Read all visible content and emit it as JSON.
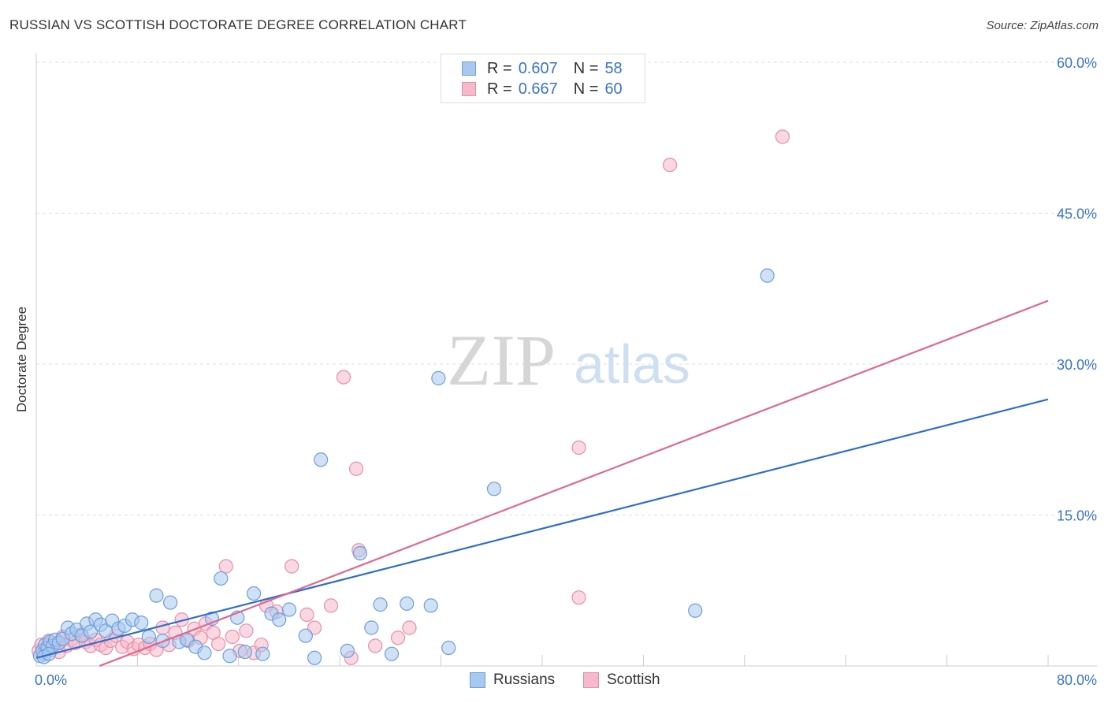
{
  "title": "RUSSIAN VS SCOTTISH DOCTORATE DEGREE CORRELATION CHART",
  "source": "Source: ZipAtlas.com",
  "watermark": {
    "zip": "ZIP",
    "atlas": "atlas"
  },
  "legend": {
    "russians": {
      "r_label": "R =",
      "r_value": "0.607",
      "n_label": "N =",
      "n_value": "58"
    },
    "scottish": {
      "r_label": "R =",
      "r_value": "0.667",
      "n_label": "N =",
      "n_value": "60"
    }
  },
  "colors": {
    "russians_fill": "#a9c8ef",
    "russians_stroke": "#6a9fdc",
    "russians_line": "#2f6fc9",
    "scottish_fill": "#f6b8cb",
    "scottish_stroke": "#e88ea9",
    "scottish_line": "#e0688f",
    "tick_label": "#3a74c8",
    "grid": "#dcdcdc"
  },
  "chart_data": {
    "type": "scatter",
    "title": "RUSSIAN VS SCOTTISH DOCTORATE DEGREE CORRELATION CHART",
    "xlabel": "",
    "ylabel": "Doctorate Degree",
    "xlim": [
      0,
      80
    ],
    "ylim": [
      0,
      60
    ],
    "x_tick_labels": [
      "0.0%",
      "80.0%"
    ],
    "y_ticks": [
      15,
      30,
      45,
      60
    ],
    "y_tick_labels": [
      "15.0%",
      "30.0%",
      "45.0%",
      "60.0%"
    ],
    "grid": true,
    "legend_position": "top-center",
    "series": [
      {
        "name": "Russians",
        "r": 0.607,
        "n": 58,
        "trend": [
          [
            0,
            0.8
          ],
          [
            80,
            26.5
          ]
        ],
        "points": [
          [
            0.3,
            1.0
          ],
          [
            0.5,
            1.5
          ],
          [
            0.7,
            2.1
          ],
          [
            0.9,
            1.8
          ],
          [
            1.1,
            2.4
          ],
          [
            1.3,
            2.0
          ],
          [
            1.5,
            2.6
          ],
          [
            1.8,
            2.3
          ],
          [
            2.1,
            2.7
          ],
          [
            2.5,
            3.8
          ],
          [
            2.8,
            3.2
          ],
          [
            3.2,
            3.6
          ],
          [
            3.6,
            3.0
          ],
          [
            4.0,
            4.2
          ],
          [
            4.3,
            3.4
          ],
          [
            4.7,
            4.6
          ],
          [
            5.1,
            4.1
          ],
          [
            5.5,
            3.5
          ],
          [
            6.0,
            4.5
          ],
          [
            6.5,
            3.7
          ],
          [
            7.0,
            4.0
          ],
          [
            7.6,
            4.6
          ],
          [
            8.3,
            4.3
          ],
          [
            8.9,
            2.9
          ],
          [
            9.5,
            7.0
          ],
          [
            10.0,
            2.5
          ],
          [
            10.6,
            6.3
          ],
          [
            11.3,
            2.4
          ],
          [
            11.9,
            2.6
          ],
          [
            12.6,
            1.9
          ],
          [
            13.3,
            1.3
          ],
          [
            13.9,
            4.7
          ],
          [
            14.6,
            8.7
          ],
          [
            15.3,
            1.0
          ],
          [
            15.9,
            4.8
          ],
          [
            16.5,
            1.4
          ],
          [
            17.2,
            7.2
          ],
          [
            17.9,
            1.2
          ],
          [
            18.6,
            5.2
          ],
          [
            19.2,
            4.6
          ],
          [
            20.0,
            5.6
          ],
          [
            21.3,
            3.0
          ],
          [
            22.0,
            0.8
          ],
          [
            22.5,
            20.5
          ],
          [
            24.6,
            1.5
          ],
          [
            25.6,
            11.2
          ],
          [
            26.5,
            3.8
          ],
          [
            27.2,
            6.1
          ],
          [
            28.1,
            1.2
          ],
          [
            29.3,
            6.2
          ],
          [
            31.2,
            6.0
          ],
          [
            31.8,
            28.6
          ],
          [
            32.6,
            1.8
          ],
          [
            36.2,
            17.6
          ],
          [
            52.1,
            5.5
          ],
          [
            57.8,
            38.8
          ],
          [
            0.6,
            0.9
          ],
          [
            1.0,
            1.2
          ]
        ]
      },
      {
        "name": "Scottish",
        "r": 0.667,
        "n": 60,
        "trend": [
          [
            5,
            0
          ],
          [
            80,
            36.3
          ]
        ],
        "points": [
          [
            0.2,
            1.5
          ],
          [
            0.4,
            2.1
          ],
          [
            0.6,
            1.2
          ],
          [
            0.8,
            1.8
          ],
          [
            1.0,
            2.5
          ],
          [
            1.2,
            1.6
          ],
          [
            1.5,
            2.2
          ],
          [
            1.8,
            1.4
          ],
          [
            2.1,
            2.9
          ],
          [
            2.4,
            2.0
          ],
          [
            2.8,
            2.6
          ],
          [
            3.1,
            2.3
          ],
          [
            3.5,
            3.1
          ],
          [
            3.9,
            2.4
          ],
          [
            4.3,
            2.0
          ],
          [
            4.7,
            2.6
          ],
          [
            5.1,
            2.1
          ],
          [
            5.5,
            1.8
          ],
          [
            5.9,
            2.5
          ],
          [
            6.3,
            3.0
          ],
          [
            6.8,
            1.9
          ],
          [
            7.2,
            2.4
          ],
          [
            7.7,
            1.7
          ],
          [
            8.1,
            2.1
          ],
          [
            8.6,
            1.8
          ],
          [
            9.0,
            2.2
          ],
          [
            9.5,
            1.6
          ],
          [
            10.0,
            3.8
          ],
          [
            10.5,
            2.1
          ],
          [
            11.0,
            3.3
          ],
          [
            11.5,
            4.6
          ],
          [
            12.0,
            2.5
          ],
          [
            12.5,
            3.7
          ],
          [
            13.0,
            2.8
          ],
          [
            13.4,
            4.2
          ],
          [
            14.0,
            3.3
          ],
          [
            14.4,
            2.2
          ],
          [
            15.0,
            9.9
          ],
          [
            15.5,
            2.9
          ],
          [
            16.1,
            1.5
          ],
          [
            16.6,
            3.5
          ],
          [
            17.2,
            1.3
          ],
          [
            17.8,
            2.1
          ],
          [
            18.2,
            6.0
          ],
          [
            19.0,
            5.4
          ],
          [
            20.2,
            9.9
          ],
          [
            21.4,
            5.1
          ],
          [
            22.0,
            3.8
          ],
          [
            23.3,
            6.0
          ],
          [
            24.3,
            28.7
          ],
          [
            24.9,
            0.8
          ],
          [
            25.3,
            19.6
          ],
          [
            25.5,
            11.5
          ],
          [
            26.8,
            2.0
          ],
          [
            28.6,
            2.8
          ],
          [
            29.5,
            3.8
          ],
          [
            42.9,
            21.7
          ],
          [
            42.9,
            6.8
          ],
          [
            50.1,
            49.8
          ],
          [
            59.0,
            52.6
          ]
        ]
      }
    ]
  },
  "bottom_legend": {
    "russians": "Russians",
    "scottish": "Scottish"
  }
}
